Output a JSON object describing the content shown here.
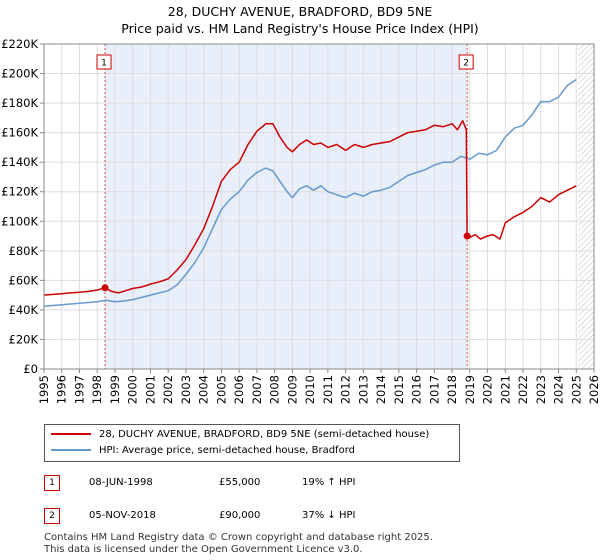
{
  "title_line1": "28, DUCHY AVENUE, BRADFORD, BD9 5NE",
  "title_line2": "Price paid vs. HM Land Registry's House Price Index (HPI)",
  "chart_data": {
    "type": "line",
    "x_range": [
      1995,
      2026
    ],
    "ylim": [
      0,
      220000
    ],
    "ytick_values": [
      0,
      20000,
      40000,
      60000,
      80000,
      100000,
      120000,
      140000,
      160000,
      180000,
      200000,
      220000
    ],
    "ytick_labels": [
      "£0",
      "£20K",
      "£40K",
      "£60K",
      "£80K",
      "£100K",
      "£120K",
      "£140K",
      "£160K",
      "£180K",
      "£200K",
      "£220K"
    ],
    "xtick_values": [
      1995,
      1996,
      1997,
      1998,
      1999,
      2000,
      2001,
      2002,
      2003,
      2004,
      2005,
      2006,
      2007,
      2008,
      2009,
      2010,
      2011,
      2012,
      2013,
      2014,
      2015,
      2016,
      2017,
      2018,
      2019,
      2020,
      2021,
      2022,
      2023,
      2024,
      2025,
      2026
    ],
    "xtick_labels": [
      "1995",
      "1996",
      "1997",
      "1998",
      "1999",
      "2000",
      "2001",
      "2002",
      "2003",
      "2004",
      "2005",
      "2006",
      "2007",
      "2008",
      "2009",
      "2010",
      "2011",
      "2012",
      "2013",
      "2014",
      "2015",
      "2016",
      "2017",
      "2018",
      "2019",
      "2020",
      "2021",
      "2022",
      "2023",
      "2024",
      "2025",
      "2026"
    ],
    "shaded_period": [
      1998.44,
      2018.85
    ],
    "future_hatch_from": 2025.1,
    "grid": true,
    "series": [
      {
        "name": "28, DUCHY AVENUE, BRADFORD, BD9 5NE (semi-detached house)",
        "color": "#cc0000",
        "x": [
          1995.0,
          1995.5,
          1996.0,
          1996.5,
          1997.0,
          1997.5,
          1998.0,
          1998.44,
          1998.8,
          1999.2,
          1999.6,
          2000.0,
          2000.5,
          2001.0,
          2001.5,
          2002.0,
          2002.5,
          2003.0,
          2003.5,
          2004.0,
          2004.5,
          2005.0,
          2005.5,
          2006.0,
          2006.5,
          2007.0,
          2007.5,
          2007.9,
          2008.3,
          2008.7,
          2009.0,
          2009.4,
          2009.8,
          2010.2,
          2010.6,
          2011.0,
          2011.5,
          2012.0,
          2012.5,
          2013.0,
          2013.5,
          2014.0,
          2014.5,
          2015.0,
          2015.5,
          2016.0,
          2016.5,
          2017.0,
          2017.5,
          2018.0,
          2018.3,
          2018.6,
          2018.8,
          2018.85,
          2019.0,
          2019.3,
          2019.6,
          2020.0,
          2020.3,
          2020.7,
          2021.0,
          2021.5,
          2022.0,
          2022.5,
          2023.0,
          2023.5,
          2024.0,
          2024.5,
          2025.0
        ],
        "values": [
          50000,
          50500,
          51000,
          51500,
          52000,
          52500,
          53500,
          55000,
          52500,
          51500,
          53000,
          54500,
          55500,
          57500,
          59000,
          61000,
          67000,
          74000,
          84000,
          95000,
          110000,
          127000,
          135000,
          140000,
          152000,
          161000,
          166000,
          166000,
          157000,
          150000,
          147000,
          152000,
          155000,
          152000,
          153000,
          150000,
          152000,
          148000,
          152000,
          150000,
          152000,
          153000,
          154000,
          157000,
          160000,
          161000,
          162000,
          165000,
          164000,
          166000,
          162000,
          168000,
          162000,
          90000,
          89000,
          91000,
          88000,
          90000,
          91000,
          88000,
          99000,
          103000,
          106000,
          110000,
          116000,
          113000,
          118000,
          121000,
          124000
        ]
      },
      {
        "name": "HPI: Average price, semi-detached house, Bradford",
        "color": "#6699cc",
        "x": [
          1995.0,
          1995.5,
          1996.0,
          1996.5,
          1997.0,
          1997.5,
          1998.0,
          1998.5,
          1999.0,
          1999.5,
          2000.0,
          2000.5,
          2001.0,
          2001.5,
          2002.0,
          2002.5,
          2003.0,
          2003.5,
          2004.0,
          2004.5,
          2005.0,
          2005.5,
          2006.0,
          2006.5,
          2007.0,
          2007.5,
          2007.9,
          2008.3,
          2008.7,
          2009.0,
          2009.4,
          2009.8,
          2010.2,
          2010.6,
          2011.0,
          2011.5,
          2012.0,
          2012.5,
          2013.0,
          2013.5,
          2014.0,
          2014.5,
          2015.0,
          2015.5,
          2016.0,
          2016.5,
          2017.0,
          2017.5,
          2018.0,
          2018.5,
          2019.0,
          2019.5,
          2020.0,
          2020.5,
          2021.0,
          2021.5,
          2022.0,
          2022.5,
          2023.0,
          2023.5,
          2024.0,
          2024.5,
          2025.0
        ],
        "values": [
          42500,
          43000,
          43500,
          44000,
          44500,
          45000,
          45500,
          46500,
          45500,
          46000,
          47000,
          48500,
          50000,
          51500,
          53000,
          57000,
          64000,
          72000,
          82000,
          95000,
          108000,
          115000,
          120000,
          128000,
          133000,
          136000,
          134000,
          127000,
          120000,
          116000,
          122000,
          124000,
          121000,
          124000,
          120000,
          118000,
          116000,
          119000,
          117000,
          120000,
          121000,
          123000,
          127000,
          131000,
          133000,
          135000,
          138000,
          140000,
          140000,
          144000,
          142000,
          146000,
          145000,
          148000,
          157000,
          163000,
          165000,
          172000,
          181000,
          181000,
          184000,
          192000,
          196000
        ]
      }
    ],
    "markers": [
      {
        "label": "1",
        "x": 1998.44,
        "y": 55000
      },
      {
        "label": "2",
        "x": 2018.85,
        "y": 90000
      }
    ]
  },
  "legend": {
    "property": "28, DUCHY AVENUE, BRADFORD, BD9 5NE (semi-detached house)",
    "hpi": "HPI: Average price, semi-detached house, Bradford"
  },
  "sales": [
    {
      "num": "1",
      "date": "08-JUN-1998",
      "price": "£55,000",
      "hpi": "19% ↑ HPI"
    },
    {
      "num": "2",
      "date": "05-NOV-2018",
      "price": "£90,000",
      "hpi": "37% ↓ HPI"
    }
  ],
  "footer": {
    "line1": "Contains HM Land Registry data © Crown copyright and database right 2025.",
    "line2": "This data is licensed under the Open Government Licence v3.0."
  },
  "colors": {
    "accent_property": "#cc0000",
    "accent_hpi": "#6699cc",
    "shade": "#e8eefa"
  }
}
